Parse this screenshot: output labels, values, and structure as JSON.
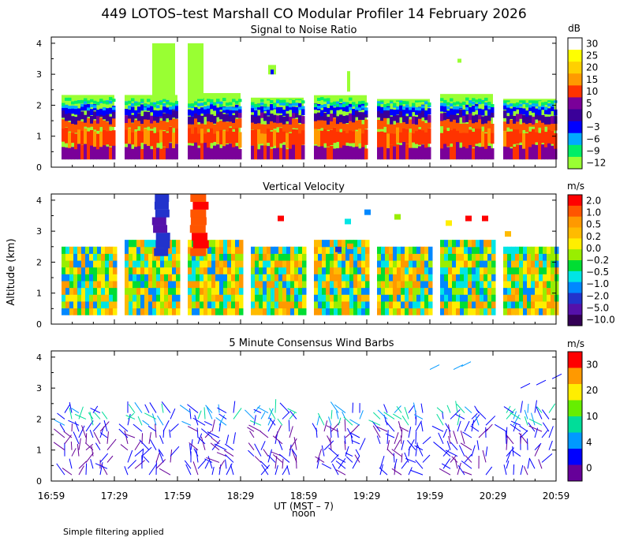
{
  "title": "449 LOTOS–test Marshall CO Modular Profiler 14 February 2026",
  "ylabel": "Altitude (km)",
  "footer": "Simple filtering applied",
  "x_axis": {
    "label": "UT  (MST – 7)",
    "noon_label": "noon",
    "ticks": [
      "16:59",
      "17:29",
      "17:59",
      "18:29",
      "18:59",
      "19:29",
      "19:59",
      "20:29",
      "20:59"
    ]
  },
  "panels": [
    {
      "title": "Signal to Noise Ratio",
      "unit": "dB",
      "y_ticks": [
        "0",
        "1",
        "2",
        "3",
        "4"
      ],
      "colorbar": {
        "labels": [
          "30",
          "25",
          "20",
          "15",
          "10",
          "5",
          "0",
          "−3",
          "−6",
          "−9",
          "−12"
        ],
        "colors": [
          "#ffffff",
          "#ffff00",
          "#ffd000",
          "#ff9a00",
          "#ff3300",
          "#7a0099",
          "#3a0099",
          "#0000ff",
          "#00aaff",
          "#00ee66",
          "#99ff33"
        ]
      }
    },
    {
      "title": "Vertical Velocity",
      "unit": "m/s",
      "y_ticks": [
        "0",
        "1",
        "2",
        "3",
        "4"
      ],
      "colorbar": {
        "labels": [
          "2.0",
          "1.0",
          "0.5",
          "0.2",
          "0.0",
          "−0.2",
          "−0.5",
          "−1.0",
          "−2.0",
          "−5.0",
          "−10.0"
        ],
        "colors": [
          "#ff0000",
          "#ff5500",
          "#ff9900",
          "#ffbb00",
          "#ffee00",
          "#99ee00",
          "#00dd33",
          "#00e5e5",
          "#0088ff",
          "#2233cc",
          "#5511aa",
          "#330055"
        ]
      }
    },
    {
      "title": "5 Minute Consensus Wind Barbs",
      "unit": "m/s",
      "y_ticks": [
        "0",
        "1",
        "2",
        "3",
        "4"
      ],
      "colorbar": {
        "labels": [
          "30",
          "20",
          "10",
          "4",
          "0"
        ],
        "colors": [
          "#ff0000",
          "#ff9900",
          "#ffee00",
          "#66ee00",
          "#00dd99",
          "#0099ff",
          "#0000ff",
          "#660099"
        ]
      }
    }
  ]
}
